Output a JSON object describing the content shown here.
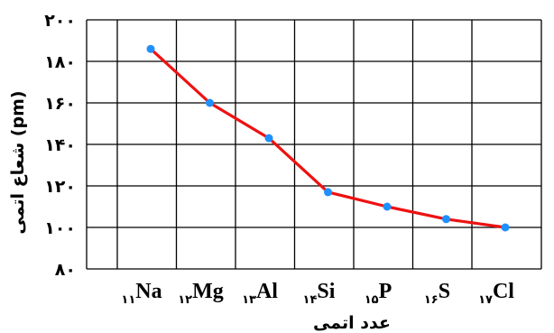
{
  "chart_data": {
    "type": "line",
    "xlabel": "عدد اتمی",
    "ylabel": "شعاع اتمی (pm)",
    "ylim": [
      80,
      200
    ],
    "yticks": [
      80,
      100,
      120,
      140,
      160,
      180,
      200
    ],
    "ytick_labels": [
      "۸۰",
      "۱۰۰",
      "۱۲۰",
      "۱۴۰",
      "۱۶۰",
      "۱۸۰",
      "۲۰۰"
    ],
    "categories": [
      {
        "symbol": "Na",
        "number": "۱۱"
      },
      {
        "symbol": "Mg",
        "number": "۱۲"
      },
      {
        "symbol": "Al",
        "number": "۱۳"
      },
      {
        "symbol": "Si",
        "number": "۱۴"
      },
      {
        "symbol": "P",
        "number": "۱۵"
      },
      {
        "symbol": "S",
        "number": "۱۶"
      },
      {
        "symbol": "Cl",
        "number": "۱۷"
      }
    ],
    "series": [
      {
        "values": [
          186,
          160,
          143,
          117,
          110,
          104,
          100
        ]
      }
    ],
    "grid": true,
    "line_color": "#ee1111",
    "marker_color": "#1e90ff"
  }
}
